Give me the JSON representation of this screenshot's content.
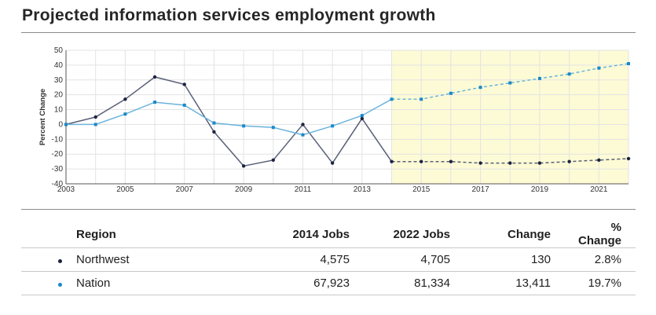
{
  "title": "Projected information services employment growth",
  "chart_data": {
    "type": "line",
    "ylabel": "Percent Change",
    "xlabel": "",
    "ylim": [
      -40,
      50
    ],
    "yticks": [
      50,
      40,
      30,
      20,
      10,
      0,
      -10,
      -20,
      -30,
      -40
    ],
    "xlim": [
      2003,
      2022
    ],
    "xticks": [
      2003,
      2005,
      2007,
      2009,
      2011,
      2013,
      2015,
      2017,
      2019,
      2021
    ],
    "projection_start": 2014,
    "projection_shading_color": "#fdfbd5",
    "grid": true,
    "series": [
      {
        "name": "Northwest",
        "color": "#5a6078",
        "marker_color": "#1b2340",
        "x": [
          2003,
          2004,
          2005,
          2006,
          2007,
          2008,
          2009,
          2010,
          2011,
          2012,
          2013,
          2014,
          2015,
          2016,
          2017,
          2018,
          2019,
          2020,
          2021,
          2022
        ],
        "values": [
          0,
          5,
          17,
          32,
          27,
          -5,
          -28,
          -24,
          0,
          -26,
          4,
          -25,
          -25,
          -25,
          -26,
          -26,
          -26,
          -25,
          -24,
          -23
        ]
      },
      {
        "name": "Nation",
        "color": "#6bb3dc",
        "marker_color": "#1b88c9",
        "x": [
          2003,
          2004,
          2005,
          2006,
          2007,
          2008,
          2009,
          2010,
          2011,
          2012,
          2013,
          2014,
          2015,
          2016,
          2017,
          2018,
          2019,
          2020,
          2021,
          2022
        ],
        "values": [
          0,
          0,
          7,
          15,
          13,
          1,
          -1,
          -2,
          -7,
          -1,
          6,
          17,
          17,
          21,
          25,
          28,
          31,
          34,
          38,
          41
        ]
      }
    ]
  },
  "table": {
    "headers": [
      "Region",
      "2014 Jobs",
      "2022 Jobs",
      "Change",
      "% Change"
    ],
    "rows": [
      {
        "region": "Northwest",
        "jobs_2014": "4,575",
        "jobs_2022": "4,705",
        "change": "130",
        "pct_change": "2.8%",
        "dot_color": "#1b2340"
      },
      {
        "region": "Nation",
        "jobs_2014": "67,923",
        "jobs_2022": "81,334",
        "change": "13,411",
        "pct_change": "19.7%",
        "dot_color": "#1b88c9"
      }
    ]
  }
}
